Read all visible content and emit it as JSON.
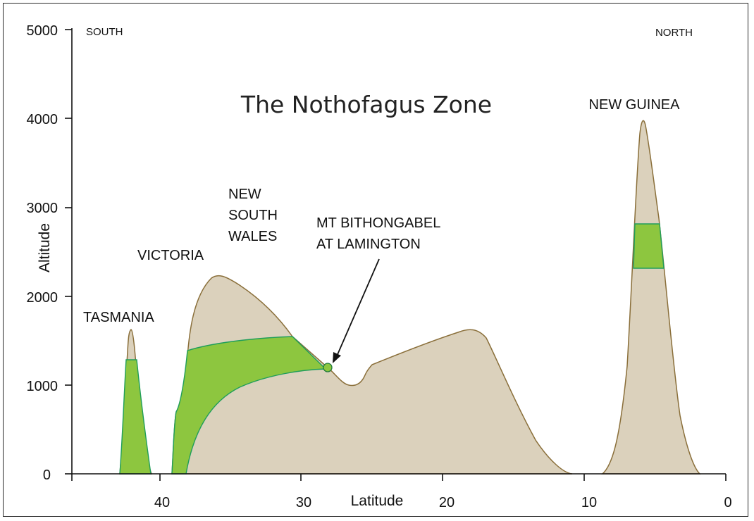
{
  "chart_data": {
    "type": "area",
    "title": "The Nothofagus Zone",
    "xlabel": "Latitude",
    "ylabel": "Altitude",
    "xlim": [
      46,
      0
    ],
    "ylim": [
      0,
      5000
    ],
    "x_ticks": [
      "40",
      "30",
      "20",
      "10",
      "0"
    ],
    "y_ticks": [
      "0",
      "1000",
      "2000",
      "3000",
      "4000",
      "5000"
    ],
    "corner_labels": {
      "left": "SOUTH",
      "right": "NORTH"
    },
    "regions": [
      {
        "name": "TASMANIA",
        "peak_latitude": 42,
        "peak_altitude": 1620,
        "zone_altitude": [
          0,
          1300
        ]
      },
      {
        "name": "VICTORIA",
        "peak_latitude": 36,
        "peak_altitude": 2230,
        "zone_altitude": [
          0,
          1560
        ]
      },
      {
        "name": "NEW SOUTH WALES",
        "zone_altitude": [
          0,
          1560
        ]
      },
      {
        "name": "NEW GUINEA",
        "peak_latitude": 6,
        "peak_altitude": 4000,
        "zone_altitude": [
          2320,
          2830
        ]
      }
    ],
    "annotation": {
      "text": [
        "MT BITHONGABEL",
        "AT LAMINGTON"
      ],
      "latitude": 28,
      "altitude": 1210
    },
    "series": [
      {
        "terrain_profile": [
          {
            "x": 42.8,
            "y": 0
          },
          {
            "x": 42.6,
            "y": 600
          },
          {
            "x": 42.2,
            "y": 1400
          },
          {
            "x": 42.0,
            "y": 1620
          },
          {
            "x": 41.8,
            "y": 1500
          },
          {
            "x": 41.5,
            "y": 900
          },
          {
            "x": 41.3,
            "y": 0
          }
        ]
      },
      {
        "terrain_profile": [
          {
            "x": 38.9,
            "y": 0
          },
          {
            "x": 38.8,
            "y": 700
          },
          {
            "x": 38.2,
            "y": 1300
          },
          {
            "x": 37.7,
            "y": 1950
          },
          {
            "x": 36.8,
            "y": 2200
          },
          {
            "x": 36.0,
            "y": 2230
          },
          {
            "x": 34.0,
            "y": 2000
          },
          {
            "x": 31.5,
            "y": 1570
          },
          {
            "x": 30.0,
            "y": 1380
          },
          {
            "x": 28.0,
            "y": 1200
          },
          {
            "x": 27.0,
            "y": 1050
          },
          {
            "x": 26.5,
            "y": 1020
          },
          {
            "x": 25.7,
            "y": 1050
          },
          {
            "x": 25.0,
            "y": 1200
          },
          {
            "x": 21.0,
            "y": 1500
          },
          {
            "x": 18.0,
            "y": 1640
          },
          {
            "x": 17.0,
            "y": 1450
          },
          {
            "x": 15.0,
            "y": 800
          },
          {
            "x": 13.0,
            "y": 150
          },
          {
            "x": 11.5,
            "y": 0
          }
        ]
      },
      {
        "terrain_profile": [
          {
            "x": 8.5,
            "y": 0
          },
          {
            "x": 7.5,
            "y": 700
          },
          {
            "x": 6.8,
            "y": 2300
          },
          {
            "x": 6.3,
            "y": 3700
          },
          {
            "x": 6.0,
            "y": 4000
          },
          {
            "x": 5.5,
            "y": 3500
          },
          {
            "x": 5.0,
            "y": 2300
          },
          {
            "x": 4.0,
            "y": 700
          },
          {
            "x": 2.0,
            "y": 0
          }
        ]
      }
    ]
  }
}
